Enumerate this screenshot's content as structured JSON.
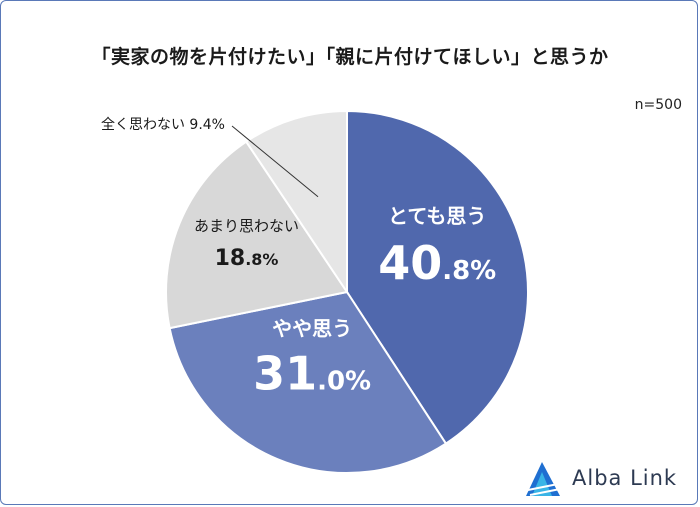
{
  "title": "「実家の物を片付けたい」「親に片付けてほしい」と思うか",
  "sample_size": "n=500",
  "chart_data": {
    "type": "pie",
    "title": "「実家の物を片付けたい」「親に片付けてほしい」と思うか",
    "start_angle_deg": 0,
    "direction": "clockwise",
    "slices": [
      {
        "label": "とても思う",
        "value": 40.8,
        "display_int": "40",
        "display_dec": ".8%",
        "color": "#5068ad",
        "label_color": "#ffffff"
      },
      {
        "label": "やや思う",
        "value": 31.0,
        "display_int": "31",
        "display_dec": ".0%",
        "color": "#6b80bd",
        "label_color": "#ffffff"
      },
      {
        "label": "あまり思わない",
        "value": 18.8,
        "display_int": "18",
        "display_dec": ".8%",
        "color": "#d8d8d8",
        "label_color": "#1a1a1a"
      },
      {
        "label": "全く思わない",
        "value": 9.4,
        "display_full": "9.4%",
        "color": "#e6e6e6",
        "label_color": "#1a1a1a"
      }
    ]
  },
  "logo": {
    "text": "Alba Link",
    "mark_color_1": "#1f6fd1",
    "mark_color_2": "#39b4e6"
  }
}
